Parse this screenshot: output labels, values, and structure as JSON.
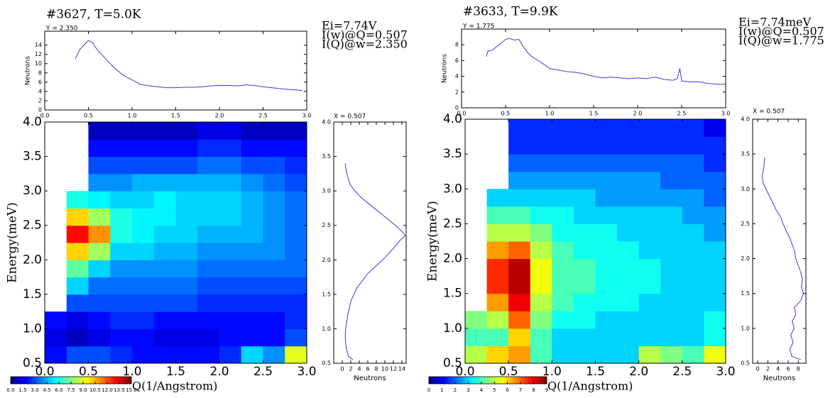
{
  "chart_data": [
    {
      "type": "heatmap",
      "xlabel": "Q(1/Angstrom)",
      "ylabel": "Energy(meV)",
      "xlim": [
        0,
        3
      ],
      "ylim": [
        0.5,
        4
      ],
      "xticks": [
        {
          "value": 0,
          "label": "0.0"
        },
        0.5,
        {
          "value": 1,
          "label": "1.0"
        },
        1.5,
        {
          "value": 2,
          "label": "2.0"
        },
        2.5,
        {
          "value": 3,
          "label": "3.0"
        }
      ],
      "yticks": [
        0.5,
        {
          "value": 1,
          "label": "1.0"
        },
        1.5,
        {
          "value": 2,
          "label": "2.0"
        },
        2.5,
        {
          "value": 3,
          "label": "3.0"
        },
        3.5,
        {
          "value": 4,
          "label": "4.0"
        }
      ],
      "xbins": [
        0,
        0.25,
        0.5,
        0.75,
        1,
        1.25,
        1.5,
        1.75,
        2,
        2.25,
        2.5,
        2.75,
        3
      ],
      "ybins": [
        0.5,
        0.75,
        1,
        1.25,
        1.5,
        1.75,
        2,
        2.25,
        2.5,
        2.75,
        3,
        3.25,
        3.5,
        3.75,
        4
      ],
      "z": [
        [
          2,
          3,
          3,
          2.5,
          2,
          2,
          2,
          2,
          2.5,
          5,
          4,
          9
        ],
        [
          1.5,
          1,
          1.5,
          2,
          2,
          1.5,
          1.5,
          1.5,
          2,
          2,
          2,
          3
        ],
        [
          2,
          1.5,
          2,
          2.5,
          2.5,
          2,
          2,
          2,
          2,
          2,
          2,
          2.5
        ],
        [
          null,
          3,
          3,
          3,
          3,
          3,
          3,
          2.5,
          2.5,
          2.5,
          2.5,
          2.5
        ],
        [
          null,
          5,
          3.5,
          3.5,
          3.5,
          3.5,
          3.5,
          3,
          3,
          3,
          3,
          3
        ],
        [
          null,
          7,
          5,
          4,
          4,
          4,
          4,
          3.5,
          3.5,
          3.5,
          3.5,
          3.5
        ],
        [
          null,
          10,
          8,
          5,
          5,
          4.5,
          4.5,
          4,
          4,
          4,
          4,
          3.5
        ],
        [
          null,
          13,
          11,
          6,
          5.5,
          5,
          5,
          4.5,
          4.5,
          4.5,
          4,
          3.5
        ],
        [
          null,
          10,
          8,
          6,
          5.5,
          5.5,
          5,
          5,
          5,
          4.5,
          4,
          3.5
        ],
        [
          null,
          6,
          5.5,
          5,
          5,
          5.5,
          5,
          5,
          5,
          4.5,
          4,
          3.5
        ],
        [
          null,
          null,
          4,
          4,
          4.5,
          4.5,
          4.5,
          4.5,
          4.5,
          4,
          3.5,
          3
        ],
        [
          null,
          null,
          3,
          3,
          3,
          3,
          3,
          3.5,
          3.5,
          3,
          3,
          2.5
        ],
        [
          null,
          null,
          2,
          2,
          2,
          2,
          2,
          2.5,
          2.5,
          2,
          2,
          2
        ],
        [
          null,
          null,
          1,
          1,
          1,
          1,
          1,
          1.5,
          1.5,
          1,
          1,
          1
        ]
      ],
      "colormap": "jet",
      "clim": [
        0,
        15
      ],
      "cticks": [
        {
          "value": 0,
          "label": "0.0"
        },
        1.5,
        {
          "value": 3,
          "label": "3.0"
        },
        4.5,
        {
          "value": 6,
          "label": "6.0"
        },
        7.5,
        {
          "value": 9,
          "label": "9.0"
        },
        10.5,
        {
          "value": 12,
          "label": "12.0"
        },
        13.5,
        {
          "value": 15,
          "label": "15.0"
        }
      ]
    },
    {
      "type": "line",
      "title": "#3627, T=5.0K",
      "subtitle": "Y = 2.350",
      "annotations": [
        "Ei=7.74V",
        "I(w)@Q=0.507",
        "I(Q)@w=2.350"
      ],
      "ylabel": "Neutrons",
      "color": "#3a3adf",
      "x": [
        0.35,
        0.4,
        0.45,
        0.5,
        0.55,
        0.6,
        0.7,
        0.8,
        0.9,
        1.0,
        1.1,
        1.2,
        1.3,
        1.4,
        1.5,
        1.6,
        1.7,
        1.8,
        1.9,
        2.0,
        2.1,
        2.2,
        2.3,
        2.4,
        2.5,
        2.6,
        2.7,
        2.8,
        2.9,
        2.95
      ],
      "values": [
        11,
        13,
        14,
        15,
        14.5,
        13,
        11,
        9,
        7.5,
        6.5,
        5.5,
        5.2,
        5.0,
        4.8,
        4.8,
        4.9,
        4.9,
        5.0,
        5.2,
        5.3,
        5.3,
        5.2,
        5.4,
        5.3,
        5.0,
        4.8,
        4.6,
        4.4,
        4.3,
        4.2
      ],
      "xlim": [
        0,
        3
      ],
      "ylim": [
        0,
        17
      ],
      "xticks": [
        {
          "value": 0,
          "label": "0.0"
        },
        0.5,
        {
          "value": 1,
          "label": "1.0"
        },
        1.5,
        {
          "value": 2,
          "label": "2.0"
        },
        2.5,
        {
          "value": 3,
          "label": "3.0"
        }
      ],
      "yticks": [
        0,
        2,
        4,
        6,
        8,
        10,
        12,
        14
      ]
    },
    {
      "type": "line",
      "orientation": "horizontal",
      "title": "X = 0.507",
      "xlabel": "Neutrons",
      "color": "#3a3adf",
      "y": [
        0.55,
        0.6,
        0.7,
        0.8,
        0.9,
        1.0,
        1.2,
        1.4,
        1.6,
        1.8,
        2.0,
        2.1,
        2.2,
        2.3,
        2.35,
        2.4,
        2.5,
        2.6,
        2.7,
        2.8,
        2.9,
        3.0,
        3.1,
        3.2,
        3.3,
        3.4
      ],
      "values": [
        2.5,
        1.5,
        1.0,
        0.8,
        0.7,
        0.8,
        1.3,
        2.0,
        3.5,
        6.0,
        9.5,
        11.0,
        12.5,
        13.8,
        14.8,
        14.2,
        12.5,
        10.5,
        8.5,
        6.5,
        4.5,
        3.0,
        1.8,
        1.3,
        0.9,
        0.7
      ],
      "xlim": [
        -2,
        15
      ],
      "ylim": [
        0.5,
        4
      ],
      "xticks": [
        0,
        2,
        4,
        6,
        8,
        10,
        12,
        14
      ],
      "yticks": [
        0.5,
        {
          "value": 1,
          "label": "1.0"
        },
        1.5,
        {
          "value": 2,
          "label": "2.0"
        },
        2.5,
        {
          "value": 3,
          "label": "3.0"
        },
        3.5,
        {
          "value": 4,
          "label": "4.0"
        }
      ]
    },
    {
      "type": "heatmap",
      "xlabel": "Q(1/Angstrom)",
      "ylabel": "Energy(meV)",
      "xlim": [
        0,
        3
      ],
      "ylim": [
        0.5,
        4
      ],
      "xticks": [
        {
          "value": 0,
          "label": "0.0"
        },
        0.5,
        {
          "value": 1,
          "label": "1.0"
        },
        1.5,
        {
          "value": 2,
          "label": "2.0"
        },
        2.5,
        {
          "value": 3,
          "label": "3.0"
        }
      ],
      "yticks": [
        0.5,
        {
          "value": 1,
          "label": "1.0"
        },
        1.5,
        {
          "value": 2,
          "label": "2.0"
        },
        2.5,
        {
          "value": 3,
          "label": "3.0"
        },
        3.5,
        {
          "value": 4,
          "label": "4.0"
        }
      ],
      "xbins": [
        0,
        0.25,
        0.5,
        0.75,
        1,
        1.25,
        1.5,
        1.75,
        2,
        2.25,
        2.5,
        2.75,
        3
      ],
      "ybins": [
        0.5,
        0.75,
        1,
        1.25,
        1.5,
        1.75,
        2,
        2.25,
        2.5,
        2.75,
        3,
        3.25,
        3.5,
        3.75,
        4
      ],
      "z": [
        [
          5,
          6,
          6.5,
          4,
          3,
          3,
          3,
          3,
          5,
          4.5,
          4,
          5.5
        ],
        [
          4,
          4,
          6,
          4,
          3,
          3,
          3,
          3,
          3,
          3,
          3,
          3.5
        ],
        [
          4.5,
          5,
          7,
          4.5,
          3.5,
          3.5,
          3,
          3,
          3,
          3,
          3,
          3.5
        ],
        [
          null,
          6.5,
          8,
          5,
          4,
          3.5,
          3.5,
          3.5,
          3,
          3,
          3,
          3
        ],
        [
          null,
          7.5,
          8.5,
          5.5,
          4,
          4,
          3.5,
          3.5,
          3.5,
          3,
          3,
          3
        ],
        [
          null,
          7.5,
          8.5,
          5.5,
          4,
          4,
          3.5,
          3.5,
          3.5,
          3,
          3,
          3
        ],
        [
          null,
          6.5,
          7,
          5,
          4,
          3.5,
          3.5,
          3.5,
          3,
          3,
          3,
          3
        ],
        [
          null,
          5,
          5,
          4.5,
          3.5,
          3.5,
          3.5,
          3,
          3,
          3,
          3,
          2.5
        ],
        [
          null,
          4,
          4,
          3.5,
          3.5,
          3,
          3,
          3,
          3,
          3,
          2.5,
          2.5
        ],
        [
          null,
          3,
          3,
          3,
          3,
          3,
          2.5,
          2.5,
          2.5,
          2.5,
          2.5,
          2
        ],
        [
          null,
          null,
          2.5,
          2.5,
          2.5,
          2.5,
          2.5,
          2.5,
          2.5,
          2,
          2,
          2
        ],
        [
          null,
          null,
          2,
          2,
          2,
          2,
          2,
          2,
          2,
          2,
          2,
          1.5
        ],
        [
          null,
          null,
          1.5,
          1.5,
          1.5,
          1.5,
          1.5,
          1.5,
          1.5,
          1.5,
          1.5,
          1.5
        ],
        [
          null,
          null,
          1.5,
          1.5,
          1.5,
          1.5,
          1.5,
          1.5,
          1.5,
          1.5,
          1.5,
          1
        ]
      ],
      "colormap": "jet",
      "clim": [
        0,
        9
      ],
      "cticks": [
        0,
        1,
        2,
        3,
        4,
        5,
        6,
        7,
        8,
        9
      ]
    },
    {
      "type": "line",
      "title": "#3633, T=9.9K",
      "subtitle": "Y = 1.775",
      "annotations": [
        "Ei=7.74meV",
        "I(w)@Q=0.507",
        "I(Q)@w=1.775"
      ],
      "ylabel": "Neutrons",
      "color": "#3a3adf",
      "x": [
        0.28,
        0.3,
        0.35,
        0.4,
        0.45,
        0.5,
        0.55,
        0.6,
        0.65,
        0.7,
        0.75,
        0.8,
        0.9,
        1.0,
        1.1,
        1.2,
        1.3,
        1.4,
        1.5,
        1.6,
        1.7,
        1.8,
        1.9,
        2.0,
        2.1,
        2.2,
        2.3,
        2.4,
        2.45,
        2.48,
        2.5,
        2.6,
        2.7,
        2.8,
        2.9,
        3.0
      ],
      "values": [
        6.5,
        7.2,
        7.3,
        7.8,
        8.2,
        8.7,
        8.8,
        8.6,
        8.7,
        7.8,
        7.0,
        6.5,
        5.8,
        5.0,
        4.8,
        4.6,
        4.5,
        4.3,
        4.0,
        3.8,
        3.9,
        3.8,
        3.7,
        3.8,
        3.7,
        3.9,
        3.6,
        3.5,
        3.7,
        5.0,
        3.4,
        3.3,
        3.3,
        3.1,
        3.0,
        3.0
      ],
      "xlim": [
        0,
        3
      ],
      "ylim": [
        0,
        10
      ],
      "xticks": [
        {
          "value": 0,
          "label": "0.0"
        },
        0.5,
        {
          "value": 1,
          "label": "1.0"
        },
        1.5,
        {
          "value": 2,
          "label": "2.0"
        },
        2.5,
        {
          "value": 3,
          "label": "3.0"
        }
      ],
      "yticks": [
        0,
        2,
        4,
        6,
        8
      ]
    },
    {
      "type": "line",
      "orientation": "horizontal",
      "title": "X = 0.507",
      "xlabel": "Neutrons",
      "color": "#3a3adf",
      "y": [
        0.55,
        0.6,
        0.7,
        0.8,
        0.9,
        1.0,
        1.1,
        1.2,
        1.3,
        1.4,
        1.5,
        1.6,
        1.7,
        1.8,
        1.9,
        2.0,
        2.1,
        2.2,
        2.3,
        2.4,
        2.5,
        2.6,
        2.7,
        2.8,
        2.9,
        3.0,
        3.1,
        3.2,
        3.3,
        3.4,
        3.45
      ],
      "values": [
        8.5,
        6.7,
        6.3,
        7.0,
        6.5,
        7.2,
        6.8,
        7.5,
        7.2,
        8.5,
        9.0,
        8.6,
        8.8,
        8.5,
        8.0,
        7.5,
        7.3,
        6.8,
        6.3,
        5.6,
        5.0,
        4.5,
        3.6,
        3.0,
        2.3,
        1.6,
        1.0,
        0.9,
        1.2,
        1.3,
        1.4
      ],
      "xlim": [
        -1,
        9.5
      ],
      "ylim": [
        0.5,
        4
      ],
      "xticks": [
        0,
        2,
        4,
        6,
        8
      ],
      "yticks": [
        0.5,
        {
          "value": 1,
          "label": "1.0"
        },
        1.5,
        {
          "value": 2,
          "label": "2.0"
        },
        2.5,
        {
          "value": 3,
          "label": "3.0"
        },
        3.5,
        {
          "value": 4,
          "label": "4.0"
        }
      ]
    }
  ]
}
